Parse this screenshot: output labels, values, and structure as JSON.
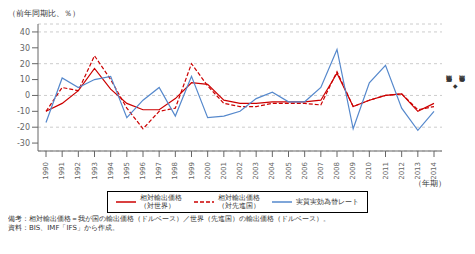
{
  "chart_data": {
    "type": "line",
    "title": "（前年同期比、％）",
    "x_label": "（年期）",
    "y_label": "価格競争力低下\n◆\n価格競争力上昇",
    "annotations": [
      "備考：相対輸出価格＝我が国の輸出価格（ドルベース）／世界（先進国）の輸出価格（ドルベース）。",
      "資料：BIS、IMF「IFS」から作成。"
    ],
    "categories": [
      "1990",
      "1991",
      "1992",
      "1993",
      "1994",
      "1995",
      "1996",
      "1997",
      "1998",
      "1999",
      "2000",
      "2001",
      "2002",
      "2003",
      "2004",
      "2005",
      "2006",
      "2007",
      "2008",
      "2009",
      "2010",
      "2011",
      "2012",
      "2013",
      "2014"
    ],
    "series": [
      {
        "name": "相対輸出価格\n（対世界）",
        "color": "#cc0000",
        "line_style": "solid",
        "values": [
          -10,
          -5,
          3,
          17,
          4,
          -5,
          -9,
          -9,
          -2,
          8,
          7,
          -3,
          -5,
          -5,
          -4,
          -4,
          -4,
          -3,
          14,
          -7,
          -3,
          0,
          1,
          -10,
          -5
        ]
      },
      {
        "name": "相対輸出価格\n（対先進国）",
        "color": "#cc0000",
        "line_style": "dashed",
        "values": [
          -10,
          5,
          3,
          25,
          10,
          -8,
          -21,
          -10,
          -8,
          20,
          6,
          -5,
          -7,
          -7,
          -5,
          -5,
          -5,
          -6,
          15,
          -7,
          -3,
          0,
          1,
          -9,
          -7
        ]
      },
      {
        "name": "実質実効為替レート",
        "color": "#5588cc",
        "line_style": "solid",
        "values": [
          -17,
          11,
          5,
          10,
          12,
          -14,
          -3,
          5,
          -13,
          12,
          -14,
          -13,
          -10,
          -2,
          2,
          -4,
          -4,
          5,
          29,
          -21,
          8,
          19,
          -8,
          -22,
          -10
        ]
      }
    ],
    "ylim": [
      -35,
      45
    ],
    "yticks": [
      -30,
      -20,
      -10,
      0,
      10,
      20,
      30,
      40
    ],
    "grid": true,
    "legend": "bottom"
  }
}
